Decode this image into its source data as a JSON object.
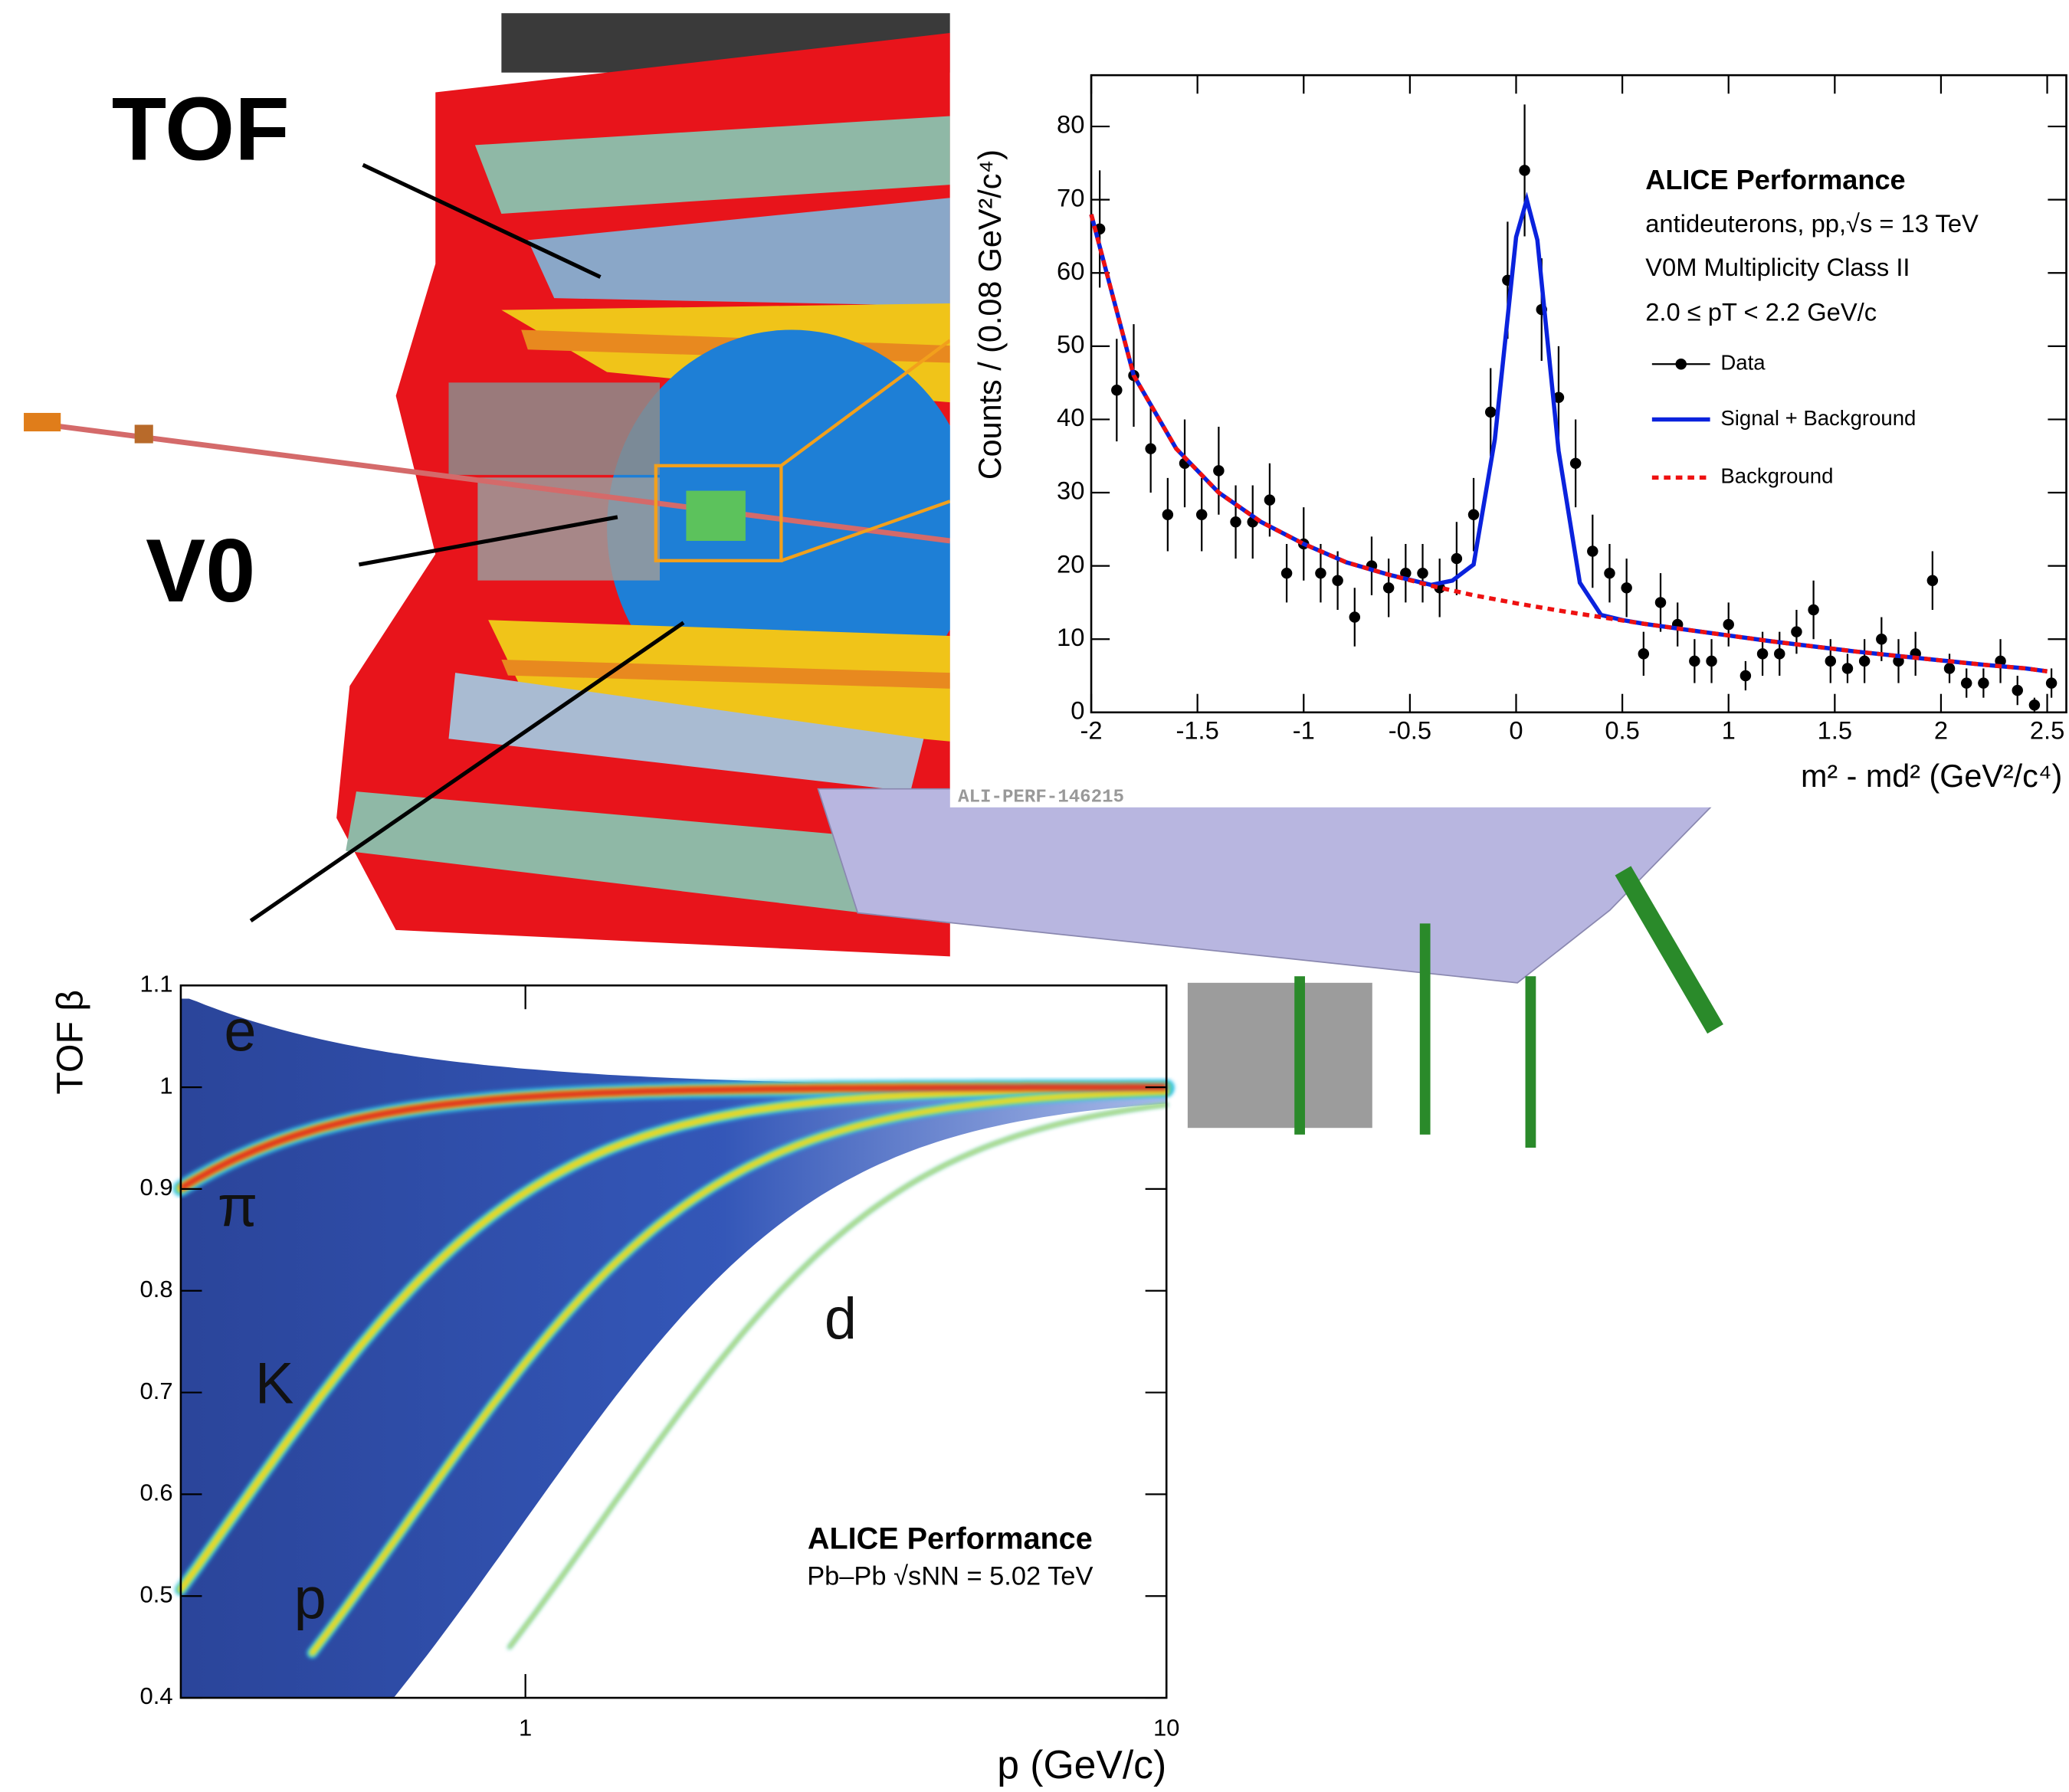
{
  "labels": {
    "tof": "TOF",
    "v0": "V0",
    "plot_id": "ALI-PERF-146215"
  },
  "chart_data": [
    {
      "type": "scatter",
      "y_label": "Counts / (0.08 GeV²/c⁴)",
      "x_label": "m² - md² (GeV²/c⁴)",
      "annotations": [
        "ALICE Performance",
        "antideuterons, pp,√s = 13 TeV",
        "V0M Multiplicity Class II",
        "2.0 ≤ pT < 2.2 GeV/c"
      ],
      "xlim": [
        -2,
        2.59
      ],
      "ylim": [
        0,
        87
      ],
      "xticks": [
        -2,
        -1.5,
        -1,
        -0.5,
        0,
        0.5,
        1,
        1.5,
        2,
        2.5
      ],
      "yticks": [
        0,
        10,
        20,
        30,
        40,
        50,
        60,
        70,
        80
      ],
      "series": [
        {
          "name": "Data",
          "color": "#000000",
          "mode": "markers",
          "x": [
            -1.96,
            -1.88,
            -1.8,
            -1.72,
            -1.64,
            -1.56,
            -1.48,
            -1.4,
            -1.32,
            -1.24,
            -1.16,
            -1.08,
            -1.0,
            -0.92,
            -0.84,
            -0.76,
            -0.68,
            -0.6,
            -0.52,
            -0.44,
            -0.36,
            -0.28,
            -0.2,
            -0.12,
            -0.04,
            0.04,
            0.12,
            0.2,
            0.28,
            0.36,
            0.44,
            0.52,
            0.6,
            0.68,
            0.76,
            0.84,
            0.92,
            1.0,
            1.08,
            1.16,
            1.24,
            1.32,
            1.4,
            1.48,
            1.56,
            1.64,
            1.72,
            1.8,
            1.88,
            1.96,
            2.04,
            2.12,
            2.2,
            2.28,
            2.36,
            2.44,
            2.52
          ],
          "values": [
            66,
            44,
            46,
            36,
            27,
            34,
            27,
            33,
            26,
            26,
            29,
            19,
            23,
            19,
            18,
            13,
            20,
            17,
            19,
            19,
            17,
            21,
            27,
            41,
            59,
            74,
            55,
            43,
            34,
            22,
            19,
            17,
            8,
            15,
            12,
            7,
            7,
            12,
            5,
            8,
            8,
            11,
            14,
            7,
            6,
            7,
            10,
            7,
            8,
            18,
            6,
            4,
            4,
            7,
            3,
            1,
            4
          ],
          "errors": [
            8,
            7,
            7,
            6,
            5,
            6,
            5,
            6,
            5,
            5,
            5,
            4,
            5,
            4,
            4,
            4,
            4,
            4,
            4,
            4,
            4,
            5,
            5,
            6,
            8,
            9,
            7,
            7,
            6,
            5,
            4,
            4,
            3,
            4,
            3,
            3,
            3,
            3,
            2,
            3,
            3,
            3,
            4,
            3,
            2,
            3,
            3,
            3,
            3,
            4,
            2,
            2,
            2,
            3,
            2,
            1,
            2
          ]
        },
        {
          "name": "Signal + Background",
          "color": "#0a22dd",
          "mode": "line",
          "x": [
            -2,
            -1.8,
            -1.6,
            -1.4,
            -1.2,
            -1,
            -0.8,
            -0.6,
            -0.4,
            -0.3,
            -0.2,
            -0.1,
            0,
            0.05,
            0.1,
            0.2,
            0.3,
            0.4,
            0.5,
            0.6,
            0.8,
            1,
            1.2,
            1.4,
            1.6,
            1.8,
            2,
            2.2,
            2.4,
            2.5
          ],
          "values": [
            68,
            46,
            36,
            30,
            26,
            23,
            20.5,
            18.8,
            17.4,
            18,
            20.2,
            37.3,
            64.9,
            70,
            64.5,
            35.7,
            17.7,
            13.3,
            12.6,
            12.1,
            11.3,
            10.5,
            9.7,
            9,
            8.3,
            7.7,
            7.1,
            6.5,
            6,
            5.6
          ]
        },
        {
          "name": "Background",
          "color": "#ee1111",
          "mode": "line",
          "dashed": true,
          "x": [
            -2,
            -1.8,
            -1.6,
            -1.4,
            -1.2,
            -1,
            -0.8,
            -0.6,
            -0.4,
            -0.2,
            0,
            0.2,
            0.4,
            0.6,
            0.8,
            1,
            1.2,
            1.4,
            1.6,
            1.8,
            2,
            2.2,
            2.4,
            2.5
          ],
          "values": [
            68,
            46,
            36,
            30,
            26,
            23,
            20.5,
            18.8,
            17.3,
            16,
            14.9,
            13.9,
            13,
            12.1,
            11.3,
            10.5,
            9.7,
            9,
            8.3,
            7.7,
            7.1,
            6.5,
            6,
            5.6
          ]
        }
      ]
    },
    {
      "type": "heatmap",
      "y_label": "TOF β",
      "x_label": "p (GeV/c)",
      "annotations": [
        "e",
        "π",
        "K",
        "p",
        "d",
        "ALICE Performance",
        "Pb–Pb √sNN = 5.02 TeV"
      ],
      "xlim": [
        0.29,
        10
      ],
      "x_log": true,
      "ylim": [
        0.4,
        1.1
      ],
      "xticks": [
        1,
        10
      ],
      "yticks": [
        0.4,
        0.5,
        0.6,
        0.7,
        0.8,
        0.9,
        1,
        1.1
      ]
    }
  ]
}
